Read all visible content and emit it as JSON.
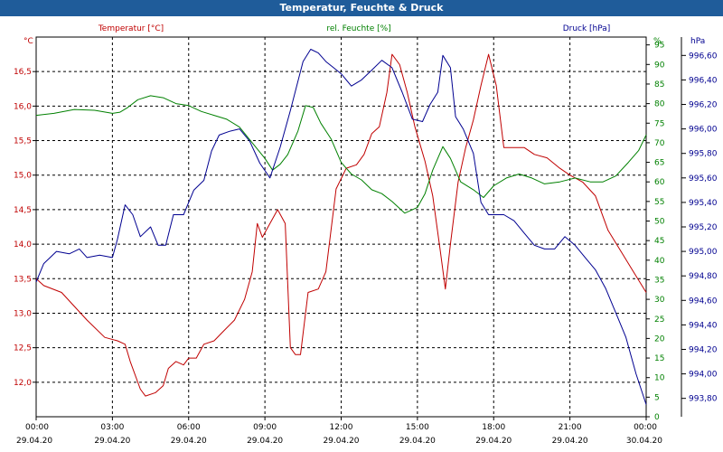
{
  "window": {
    "title": "Temperatur, Feuchte & Druck"
  },
  "chart_data": {
    "type": "line",
    "title": "Temperatur, Feuchte & Druck",
    "grid": true,
    "x_ticks": [
      {
        "time": "00:00",
        "date": "29.04.20",
        "h": 0
      },
      {
        "time": "03:00",
        "date": "29.04.20",
        "h": 3
      },
      {
        "time": "06:00",
        "date": "29.04.20",
        "h": 6
      },
      {
        "time": "09:00",
        "date": "29.04.20",
        "h": 9
      },
      {
        "time": "12:00",
        "date": "29.04.20",
        "h": 12
      },
      {
        "time": "15:00",
        "date": "29.04.20",
        "h": 15
      },
      {
        "time": "18:00",
        "date": "29.04.20",
        "h": 18
      },
      {
        "time": "21:00",
        "date": "29.04.20",
        "h": 21
      },
      {
        "time": "00:00",
        "date": "30.04.20",
        "h": 24
      }
    ],
    "axes": {
      "temperature": {
        "label": "Temperatur [°C]",
        "unit": "°C",
        "color": "#c00000",
        "ylim": [
          11.5,
          17.0
        ],
        "ticks": [
          "12,0",
          "12,5",
          "13,0",
          "13,5",
          "14,0",
          "14,5",
          "15,0",
          "15,5",
          "16,0",
          "16,5"
        ]
      },
      "humidity": {
        "label": "rel. Feuchte [%]",
        "unit": "%",
        "color": "#008000",
        "ylim": [
          0,
          97
        ],
        "ticks": [
          "0",
          "5",
          "10",
          "15",
          "20",
          "25",
          "30",
          "35",
          "40",
          "45",
          "50",
          "55",
          "60",
          "65",
          "70",
          "75",
          "80",
          "85",
          "90",
          "95"
        ]
      },
      "pressure": {
        "label": "Druck [hPa]",
        "unit": "hPa",
        "color": "#000090",
        "ylim": [
          993.65,
          996.75
        ],
        "ticks": [
          "993,80",
          "994,00",
          "994,20",
          "994,40",
          "994,60",
          "994,80",
          "995,00",
          "995,20",
          "995,40",
          "995,60",
          "995,80",
          "996,00",
          "996,20",
          "996,40",
          "996,60"
        ]
      }
    },
    "series": [
      {
        "name": "Temperatur [°C]",
        "axis": "temperature",
        "color": "#c00000",
        "points": [
          [
            0,
            13.5
          ],
          [
            0.3,
            13.4
          ],
          [
            1,
            13.3
          ],
          [
            2,
            12.9
          ],
          [
            2.7,
            12.65
          ],
          [
            3.2,
            12.6
          ],
          [
            3.5,
            12.55
          ],
          [
            3.7,
            12.3
          ],
          [
            4.1,
            11.9
          ],
          [
            4.3,
            11.8
          ],
          [
            4.7,
            11.85
          ],
          [
            5.0,
            11.95
          ],
          [
            5.2,
            12.2
          ],
          [
            5.5,
            12.3
          ],
          [
            5.8,
            12.25
          ],
          [
            6.0,
            12.35
          ],
          [
            6.3,
            12.35
          ],
          [
            6.6,
            12.55
          ],
          [
            7.0,
            12.6
          ],
          [
            7.4,
            12.75
          ],
          [
            7.8,
            12.9
          ],
          [
            8.2,
            13.2
          ],
          [
            8.5,
            13.6
          ],
          [
            8.7,
            14.3
          ],
          [
            8.9,
            14.1
          ],
          [
            9.2,
            14.3
          ],
          [
            9.5,
            14.5
          ],
          [
            9.8,
            14.3
          ],
          [
            10.0,
            12.5
          ],
          [
            10.2,
            12.4
          ],
          [
            10.4,
            12.4
          ],
          [
            10.7,
            13.3
          ],
          [
            11.1,
            13.35
          ],
          [
            11.4,
            13.6
          ],
          [
            11.8,
            14.8
          ],
          [
            12.2,
            15.1
          ],
          [
            12.6,
            15.15
          ],
          [
            12.9,
            15.3
          ],
          [
            13.2,
            15.6
          ],
          [
            13.5,
            15.7
          ],
          [
            13.8,
            16.2
          ],
          [
            14.0,
            16.75
          ],
          [
            14.3,
            16.6
          ],
          [
            14.6,
            16.2
          ],
          [
            14.9,
            15.7
          ],
          [
            15.3,
            15.2
          ],
          [
            15.6,
            14.7
          ],
          [
            15.9,
            13.9
          ],
          [
            16.1,
            13.35
          ],
          [
            16.3,
            14.0
          ],
          [
            16.6,
            14.9
          ],
          [
            16.9,
            15.4
          ],
          [
            17.2,
            15.8
          ],
          [
            17.5,
            16.3
          ],
          [
            17.8,
            16.75
          ],
          [
            18.1,
            16.3
          ],
          [
            18.4,
            15.4
          ],
          [
            18.8,
            15.4
          ],
          [
            19.2,
            15.4
          ],
          [
            19.6,
            15.3
          ],
          [
            20.1,
            15.25
          ],
          [
            20.6,
            15.1
          ],
          [
            21.0,
            15.0
          ],
          [
            21.5,
            14.9
          ],
          [
            22.0,
            14.7
          ],
          [
            22.5,
            14.2
          ],
          [
            23.0,
            13.9
          ],
          [
            23.5,
            13.6
          ],
          [
            24,
            13.3
          ]
        ]
      },
      {
        "name": "rel. Feuchte [%]",
        "axis": "humidity",
        "color": "#008000",
        "points": [
          [
            0,
            77
          ],
          [
            0.7,
            77.5
          ],
          [
            1.5,
            78.5
          ],
          [
            2.3,
            78.3
          ],
          [
            3.0,
            77.5
          ],
          [
            3.3,
            77.8
          ],
          [
            3.6,
            79
          ],
          [
            4.0,
            81
          ],
          [
            4.5,
            82
          ],
          [
            5.0,
            81.5
          ],
          [
            5.5,
            80
          ],
          [
            6.0,
            79.5
          ],
          [
            6.5,
            78
          ],
          [
            7.0,
            77
          ],
          [
            7.5,
            76
          ],
          [
            8.0,
            74
          ],
          [
            8.5,
            70
          ],
          [
            9.0,
            66
          ],
          [
            9.3,
            63
          ],
          [
            9.6,
            64.5
          ],
          [
            9.9,
            67
          ],
          [
            10.3,
            73
          ],
          [
            10.6,
            79.5
          ],
          [
            10.9,
            79
          ],
          [
            11.2,
            75
          ],
          [
            11.6,
            71
          ],
          [
            12.0,
            65
          ],
          [
            12.4,
            62
          ],
          [
            12.8,
            60.5
          ],
          [
            13.2,
            58
          ],
          [
            13.6,
            57
          ],
          [
            14.0,
            55
          ],
          [
            14.5,
            52
          ],
          [
            15.0,
            53.5
          ],
          [
            15.3,
            57
          ],
          [
            15.6,
            63
          ],
          [
            16.0,
            69
          ],
          [
            16.3,
            66
          ],
          [
            16.7,
            60
          ],
          [
            17.2,
            58
          ],
          [
            17.6,
            56
          ],
          [
            18.0,
            59
          ],
          [
            18.5,
            61
          ],
          [
            19.0,
            62
          ],
          [
            19.5,
            61
          ],
          [
            20.0,
            59.5
          ],
          [
            20.6,
            60
          ],
          [
            21.2,
            61
          ],
          [
            21.8,
            60
          ],
          [
            22.3,
            60
          ],
          [
            22.8,
            61.5
          ],
          [
            23.3,
            65
          ],
          [
            23.7,
            68
          ],
          [
            24,
            72
          ]
        ]
      },
      {
        "name": "Druck [hPa]",
        "axis": "pressure",
        "color": "#000090",
        "points": [
          [
            0,
            994.75
          ],
          [
            0.3,
            994.9
          ],
          [
            0.8,
            995.0
          ],
          [
            1.3,
            994.98
          ],
          [
            1.7,
            995.02
          ],
          [
            2.0,
            994.95
          ],
          [
            2.5,
            994.97
          ],
          [
            3.0,
            994.95
          ],
          [
            3.2,
            995.1
          ],
          [
            3.5,
            995.38
          ],
          [
            3.8,
            995.3
          ],
          [
            4.1,
            995.12
          ],
          [
            4.5,
            995.2
          ],
          [
            4.8,
            995.05
          ],
          [
            5.1,
            995.05
          ],
          [
            5.4,
            995.3
          ],
          [
            5.8,
            995.3
          ],
          [
            6.2,
            995.5
          ],
          [
            6.6,
            995.58
          ],
          [
            6.9,
            995.82
          ],
          [
            7.2,
            995.95
          ],
          [
            7.6,
            995.98
          ],
          [
            8.0,
            996.0
          ],
          [
            8.4,
            995.9
          ],
          [
            8.8,
            995.72
          ],
          [
            9.2,
            995.6
          ],
          [
            9.6,
            995.85
          ],
          [
            10.0,
            996.15
          ],
          [
            10.5,
            996.55
          ],
          [
            10.8,
            996.65
          ],
          [
            11.1,
            996.62
          ],
          [
            11.4,
            996.55
          ],
          [
            11.7,
            996.5
          ],
          [
            12.0,
            996.45
          ],
          [
            12.4,
            996.35
          ],
          [
            12.8,
            996.4
          ],
          [
            13.2,
            996.48
          ],
          [
            13.6,
            996.56
          ],
          [
            14.0,
            996.5
          ],
          [
            14.4,
            996.3
          ],
          [
            14.8,
            996.08
          ],
          [
            15.2,
            996.06
          ],
          [
            15.5,
            996.2
          ],
          [
            15.8,
            996.3
          ],
          [
            16.0,
            996.6
          ],
          [
            16.3,
            996.5
          ],
          [
            16.5,
            996.1
          ],
          [
            16.8,
            996.0
          ],
          [
            17.2,
            995.8
          ],
          [
            17.5,
            995.4
          ],
          [
            17.8,
            995.3
          ],
          [
            18.1,
            995.3
          ],
          [
            18.4,
            995.3
          ],
          [
            18.8,
            995.25
          ],
          [
            19.2,
            995.15
          ],
          [
            19.6,
            995.05
          ],
          [
            20.0,
            995.02
          ],
          [
            20.4,
            995.02
          ],
          [
            20.8,
            995.12
          ],
          [
            21.2,
            995.05
          ],
          [
            21.6,
            994.95
          ],
          [
            22.0,
            994.85
          ],
          [
            22.4,
            994.7
          ],
          [
            22.8,
            994.5
          ],
          [
            23.2,
            994.3
          ],
          [
            23.6,
            994.0
          ],
          [
            24,
            993.75
          ]
        ]
      }
    ]
  }
}
